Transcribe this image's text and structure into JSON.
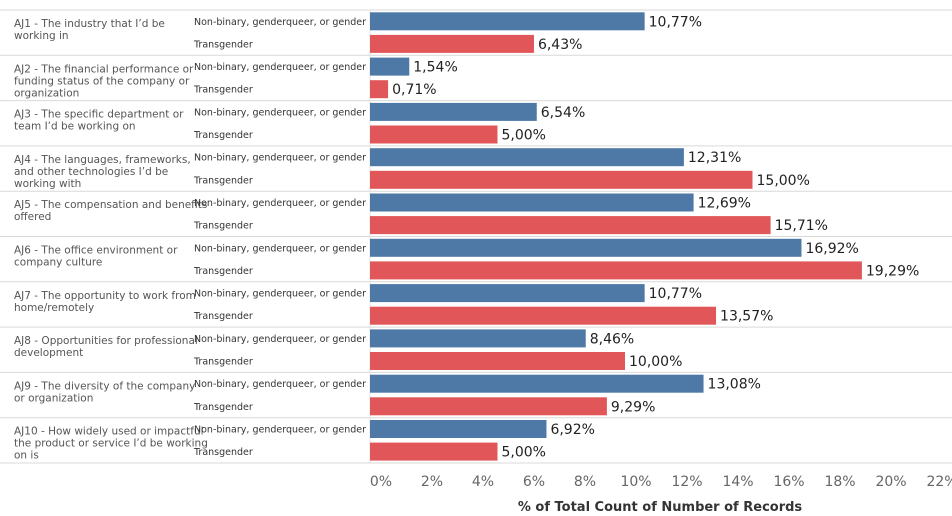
{
  "chart_data": {
    "type": "bar",
    "orientation": "horizontal",
    "xlabel": "% of Total Count of Number of Records",
    "xlim": [
      0,
      22
    ],
    "xticks": [
      0,
      2,
      4,
      6,
      8,
      10,
      12,
      14,
      16,
      18,
      20,
      22
    ],
    "tick_suffix": "%",
    "grid": false,
    "colors": {
      "Non-binary, genderqueer, or gender no..": "#4e79a7",
      "Transgender": "#e15759"
    },
    "groups": [
      {
        "label": "AJ1 - The industry that I’d be working in",
        "lines": [
          "AJ1 - The industry that I’d be",
          "working in"
        ]
      },
      {
        "label": "AJ2 - The financial performance or funding status of the company or organization",
        "lines": [
          "AJ2 - The financial performance or",
          "funding status of the company or",
          "organization"
        ]
      },
      {
        "label": "AJ3 - The specific department or team I’d be working on",
        "lines": [
          "AJ3 - The specific department or",
          "team I’d be working on"
        ]
      },
      {
        "label": "AJ4 - The languages, frameworks, and other technologies I’d be working with",
        "lines": [
          "AJ4 - The languages, frameworks,",
          "and other technologies I’d be",
          "working with"
        ]
      },
      {
        "label": "AJ5 - The compensation and benefits offered",
        "lines": [
          "AJ5 - The compensation and benefits",
          "offered"
        ]
      },
      {
        "label": "AJ6 - The office environment or company culture",
        "lines": [
          "AJ6 - The office environment or",
          "company culture"
        ]
      },
      {
        "label": "AJ7 - The opportunity to work from home/remotely",
        "lines": [
          "AJ7 - The opportunity to work from",
          "home/remotely"
        ]
      },
      {
        "label": "AJ8 - Opportunities for professional development",
        "lines": [
          "AJ8 - Opportunities for professional",
          "development"
        ]
      },
      {
        "label": "AJ9 - The diversity of the company or organization",
        "lines": [
          "AJ9 - The diversity of the company",
          "or organization"
        ]
      },
      {
        "label": "AJ10 - How widely used or impactful the product or service I’d be working on is",
        "lines": [
          "AJ10 - How widely used or impactful",
          "the product or service I’d be working",
          "on is"
        ]
      }
    ],
    "series": [
      {
        "name": "Non-binary, genderqueer, or gender no..",
        "values": [
          10.77,
          1.54,
          6.54,
          12.31,
          12.69,
          16.92,
          10.77,
          8.46,
          13.08,
          6.92
        ],
        "labels": [
          "10,77%",
          "1,54%",
          "6,54%",
          "12,31%",
          "12,69%",
          "16,92%",
          "10,77%",
          "8,46%",
          "13,08%",
          "6,92%"
        ]
      },
      {
        "name": "Transgender",
        "values": [
          6.43,
          0.71,
          5.0,
          15.0,
          15.71,
          19.29,
          13.57,
          10.0,
          9.29,
          5.0
        ],
        "labels": [
          "6,43%",
          "0,71%",
          "5,00%",
          "15,00%",
          "15,71%",
          "19,29%",
          "13,57%",
          "10,00%",
          "9,29%",
          "5,00%"
        ]
      }
    ]
  }
}
